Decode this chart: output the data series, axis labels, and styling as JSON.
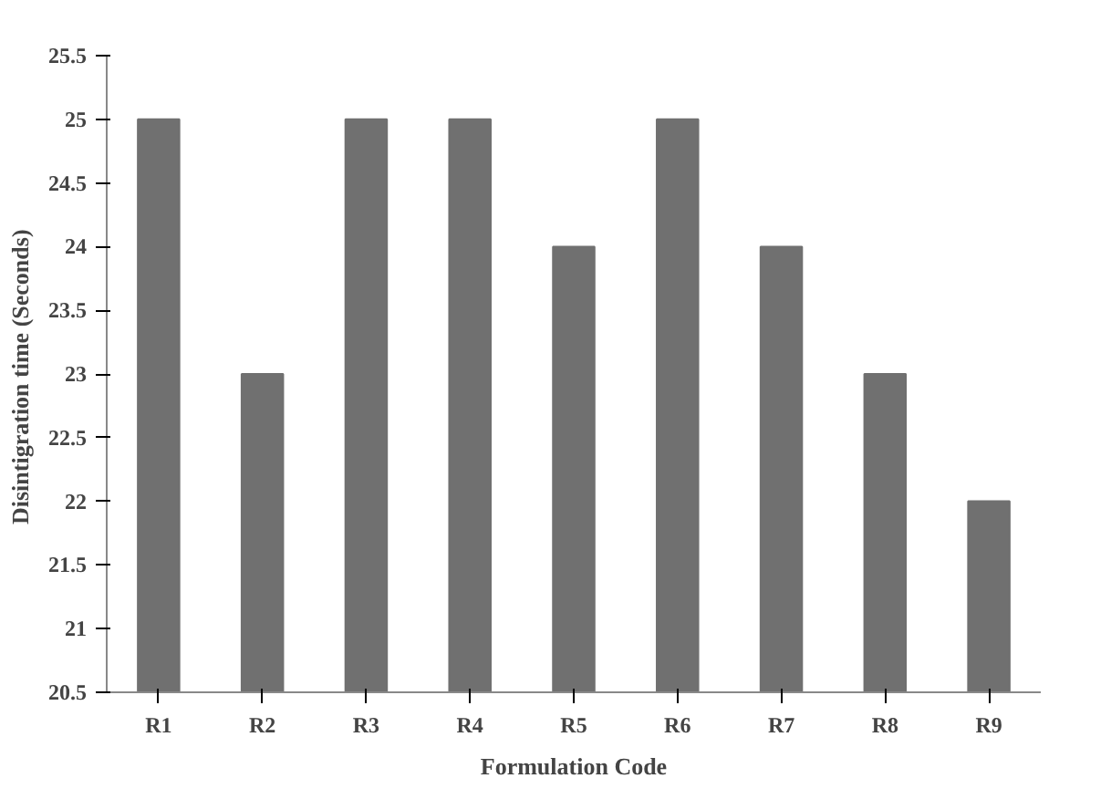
{
  "chart_data": {
    "type": "bar",
    "xlabel": "Formulation Code",
    "ylabel": "Disintigration time  (Seconds)",
    "categories": [
      "R1",
      "R2",
      "R3",
      "R4",
      "R5",
      "R6",
      "R7",
      "R8",
      "R9"
    ],
    "values": [
      25,
      23,
      25,
      25,
      24,
      25,
      24,
      23,
      22
    ],
    "color": "#707070",
    "ylim": [
      20.5,
      25.5
    ],
    "yticks": [
      20.5,
      21,
      21.5,
      22,
      22.5,
      23,
      23.5,
      24,
      24.5,
      25,
      25.5
    ],
    "grid": false
  }
}
